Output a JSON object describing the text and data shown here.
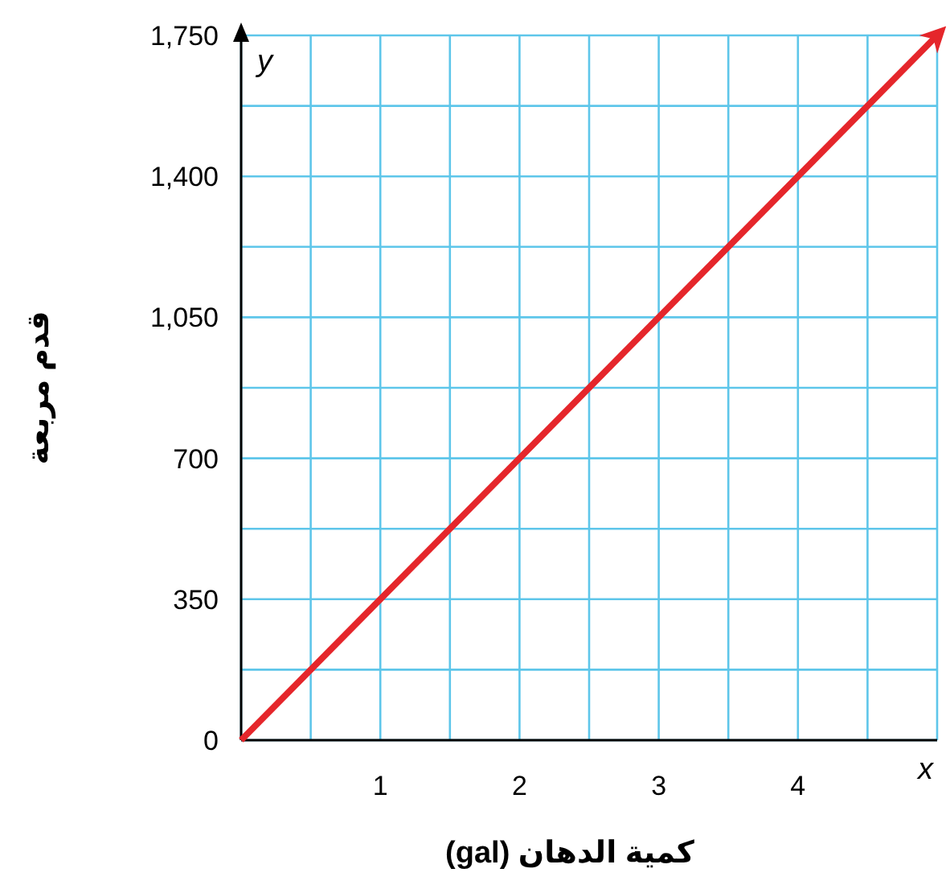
{
  "chart_data": {
    "type": "line",
    "xlabel": "كمية الدهان (gal)",
    "ylabel": "قدم مربعة",
    "annotations": [
      "x",
      "y"
    ],
    "x": [
      0,
      5
    ],
    "series": [
      {
        "color": "#e5262b",
        "values": [
          0,
          1750
        ]
      }
    ],
    "xlim": [
      0,
      5
    ],
    "ylim": [
      0,
      1750
    ],
    "xticks": [
      {
        "value": 0,
        "label": null
      },
      {
        "value": 0.5,
        "label": null
      },
      1,
      {
        "value": 1.5,
        "label": null
      },
      2,
      {
        "value": 2.5,
        "label": null
      },
      3,
      {
        "value": 3.5,
        "label": null
      },
      4,
      {
        "value": 4.5,
        "label": null
      },
      {
        "value": 5,
        "label": null
      }
    ],
    "yticks": [
      0,
      {
        "value": 175,
        "label": null
      },
      350,
      {
        "value": 525,
        "label": null
      },
      700,
      {
        "value": 875,
        "label": null
      },
      {
        "value": 1050,
        "label": "1,050"
      },
      {
        "value": 1225,
        "label": null
      },
      {
        "value": 1400,
        "label": "1,400"
      },
      {
        "value": 1575,
        "label": null
      },
      {
        "value": 1750,
        "label": "1,750"
      }
    ],
    "grid": true,
    "marker": "none",
    "line_style": "solid"
  }
}
